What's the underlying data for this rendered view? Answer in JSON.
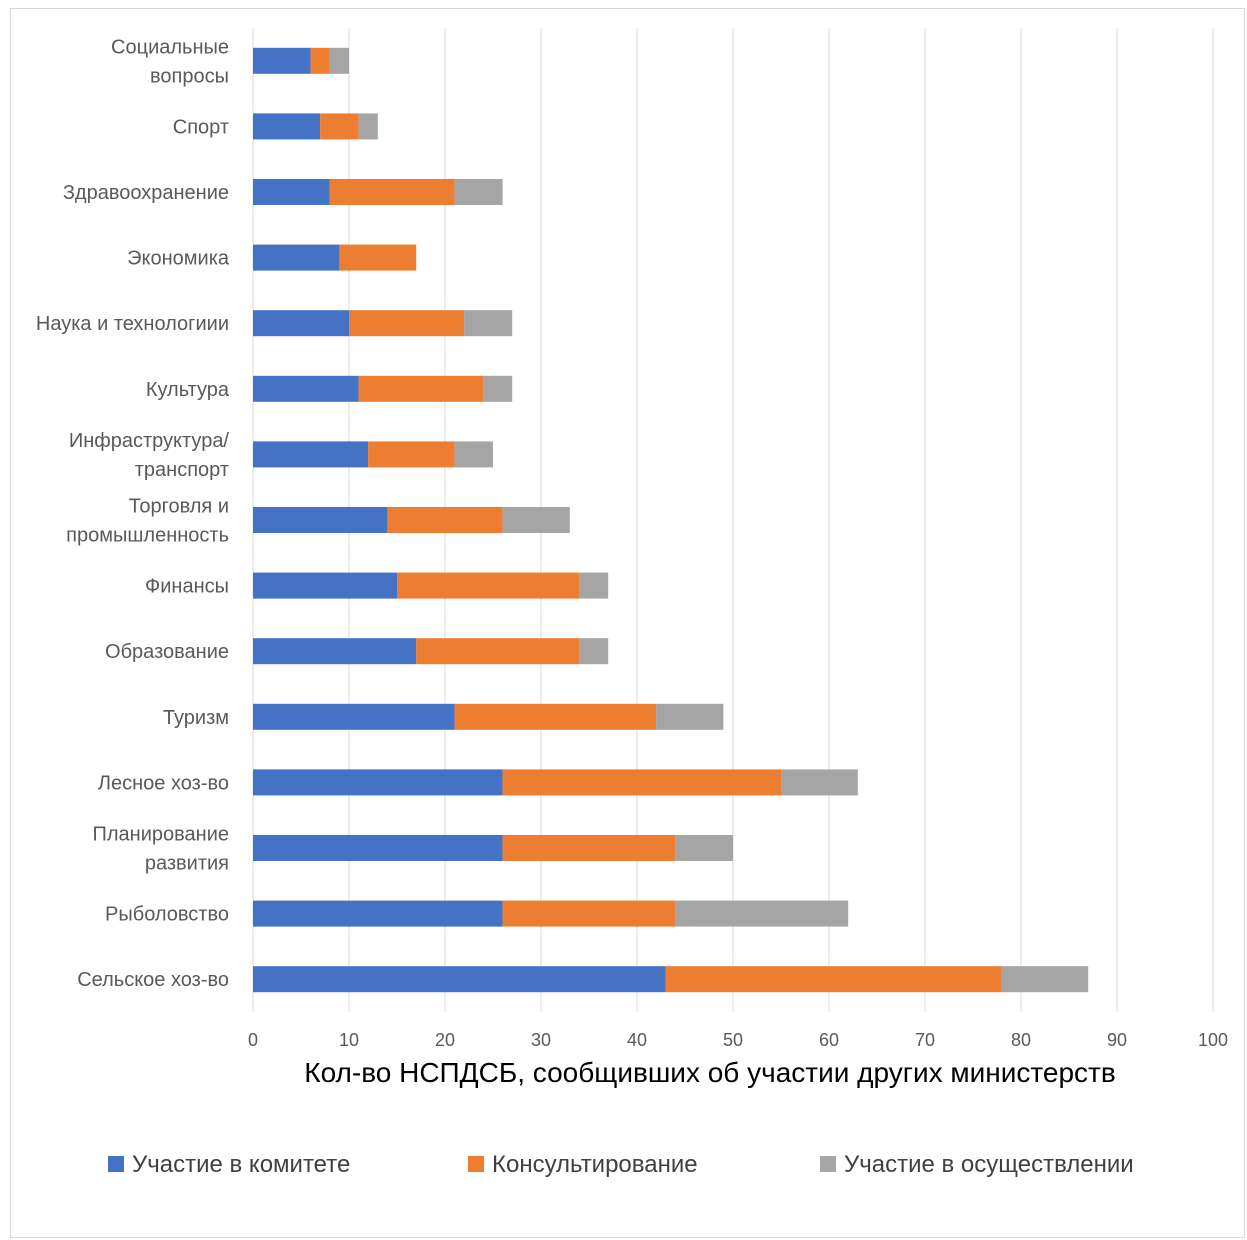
{
  "chart_data": {
    "type": "bar",
    "orientation": "horizontal",
    "stacked": true,
    "categories": [
      [
        "Социальные",
        "вопросы"
      ],
      [
        "Спорт"
      ],
      [
        "Здравоохранение"
      ],
      [
        "Экономика"
      ],
      [
        "Наука и технологиии"
      ],
      [
        "Культура"
      ],
      [
        "Инфраструктура/",
        "транспорт"
      ],
      [
        "Торговля и",
        "промышленность"
      ],
      [
        "Финансы"
      ],
      [
        "Образование"
      ],
      [
        "Туризм"
      ],
      [
        "Лесное хоз-во"
      ],
      [
        "Планирование",
        "развития"
      ],
      [
        "Рыболовство"
      ],
      [
        "Сельское хоз-во"
      ]
    ],
    "series": [
      {
        "name": "Участие в комитете",
        "color": "#4472C4",
        "values": [
          6,
          7,
          8,
          9,
          10,
          11,
          12,
          14,
          15,
          17,
          21,
          26,
          26,
          26,
          43
        ]
      },
      {
        "name": "Консультирование",
        "color": "#ED7D31",
        "values": [
          2,
          4,
          13,
          8,
          12,
          13,
          9,
          12,
          19,
          17,
          21,
          29,
          18,
          18,
          35
        ]
      },
      {
        "name": "Участие в осуществлении",
        "color": "#A5A5A5",
        "values": [
          2,
          2,
          5,
          0,
          5,
          3,
          4,
          7,
          3,
          3,
          7,
          8,
          6,
          18,
          9
        ]
      }
    ],
    "xlim": [
      0,
      100
    ],
    "xticks": [
      "0",
      "10",
      "20",
      "30",
      "40",
      "50",
      "60",
      "70",
      "80",
      "90",
      "100"
    ],
    "xlabel": "Кол-во НСПДСБ, сообщивших об участии других министерств",
    "ylabel": "",
    "title": "",
    "grid": "vertical",
    "legend_position": "bottom"
  }
}
